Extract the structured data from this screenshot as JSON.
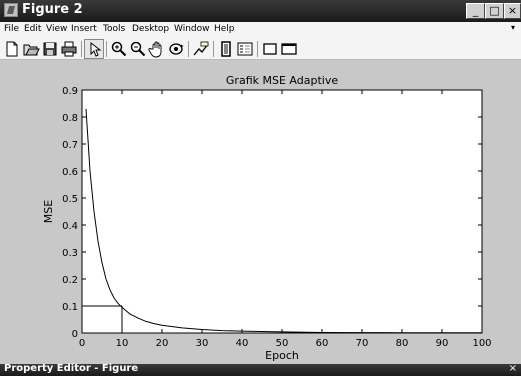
{
  "window": {
    "title": "Figure 2",
    "controls": {
      "minimize": "_",
      "maximize": "□",
      "close": "×"
    }
  },
  "menu": {
    "items": [
      "File",
      "Edit",
      "View",
      "Insert",
      "Tools",
      "Desktop",
      "Window",
      "Help"
    ],
    "overflow_arrow": "▾"
  },
  "toolbar": {
    "tools": [
      "new-figure-icon",
      "open-file-icon",
      "save-icon",
      "print-icon",
      "edit-plot-arrow-icon",
      "zoom-in-icon",
      "zoom-out-icon",
      "pan-hand-icon",
      "rotate-3d-icon",
      "data-cursor-icon",
      "colorbar-icon",
      "legend-icon",
      "hide-plot-tools-icon",
      "show-plot-tools-icon"
    ]
  },
  "property_editor": {
    "title": "Property Editor - Figure",
    "close": "×"
  },
  "chart_data": {
    "type": "line",
    "title": "Grafik MSE Adaptive",
    "xlabel": "Epoch",
    "ylabel": "MSE",
    "xlim": [
      0,
      100
    ],
    "ylim": [
      0,
      0.9
    ],
    "x_ticks": [
      0,
      10,
      20,
      30,
      40,
      50,
      60,
      70,
      80,
      90,
      100
    ],
    "y_ticks": [
      0,
      0.1,
      0.2,
      0.3,
      0.4,
      0.5,
      0.6,
      0.7,
      0.8,
      0.9
    ],
    "x_tick_labels": [
      "0",
      "10",
      "20",
      "30",
      "40",
      "50",
      "60",
      "70",
      "80",
      "90",
      "100"
    ],
    "y_tick_labels": [
      "0",
      "0.1",
      "0.2",
      "0.3",
      "0.4",
      "0.5",
      "0.6",
      "0.7",
      "0.8",
      "0.9"
    ],
    "grid": false,
    "series": [
      {
        "x": [
          1,
          2,
          3,
          4,
          5,
          6,
          7,
          8,
          9,
          10,
          12,
          14,
          16,
          18,
          20,
          25,
          30,
          35,
          40,
          50,
          60,
          70,
          80,
          90,
          100
        ],
        "y": [
          0.83,
          0.6,
          0.45,
          0.34,
          0.26,
          0.2,
          0.16,
          0.13,
          0.11,
          0.095,
          0.07,
          0.055,
          0.043,
          0.035,
          0.029,
          0.019,
          0.013,
          0.009,
          0.007,
          0.004,
          0.002,
          0.0015,
          0.001,
          0.001,
          0.001
        ]
      }
    ],
    "annotation_lines": [
      {
        "x": [
          0,
          10
        ],
        "y": [
          0.1,
          0.1
        ]
      },
      {
        "x": [
          10,
          10
        ],
        "y": [
          0,
          0.1
        ]
      }
    ],
    "colors": {
      "line": "#000000",
      "axes_bg": "#ffffff",
      "figure_bg": "#c8c8c8"
    }
  }
}
